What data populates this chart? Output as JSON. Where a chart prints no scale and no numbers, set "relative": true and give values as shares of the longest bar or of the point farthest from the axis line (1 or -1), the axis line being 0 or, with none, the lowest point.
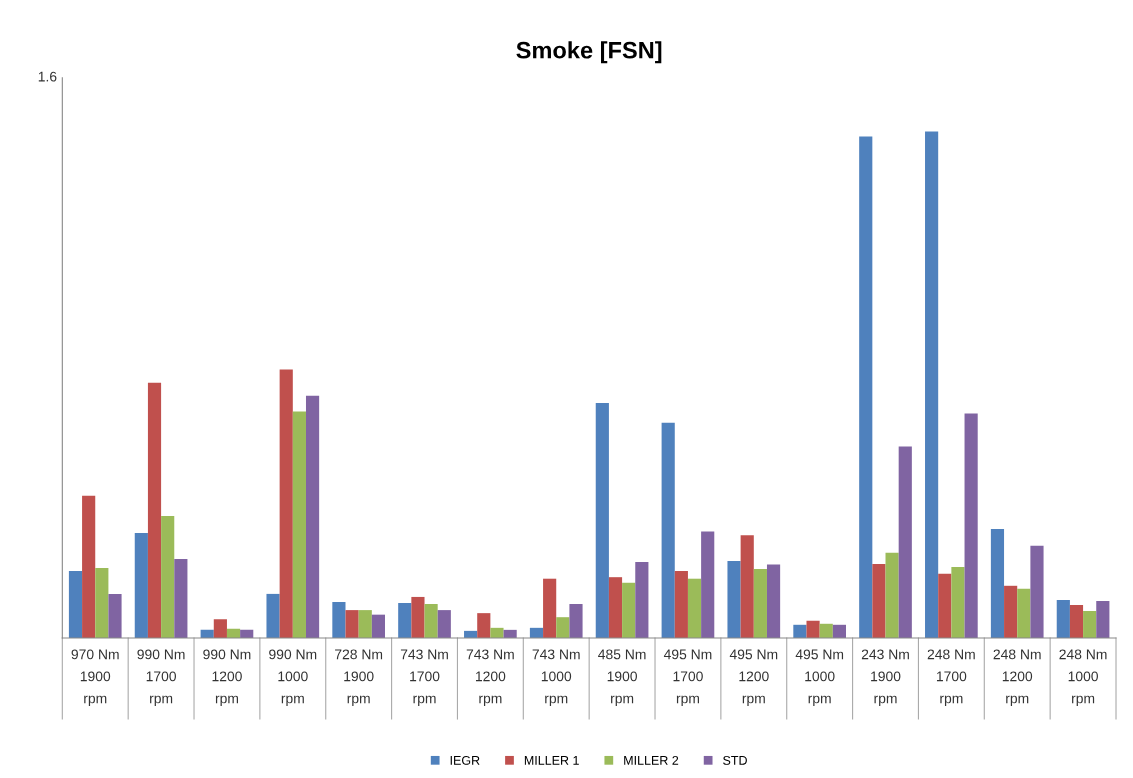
{
  "chart_data": {
    "type": "bar",
    "title": "Smoke [FSN]",
    "relative": true,
    "legend": "bottom",
    "annotations": [
      "1.6"
    ],
    "categories": [
      "970 Nm\n1900\nrpm",
      "990 Nm\n1700\nrpm",
      "990 Nm\n1200\nrpm",
      "990 Nm\n1000\nrpm",
      "728 Nm\n1900\nrpm",
      "743 Nm\n1700\nrpm",
      "743 Nm\n1200\nrpm",
      "743 Nm\n1000\nrpm",
      "485 Nm\n1900\nrpm",
      "495 Nm\n1700\nrpm",
      "495 Nm\n1200\nrpm",
      "495 Nm\n1000\nrpm",
      "243 Nm\n1900\nrpm",
      "248 Nm\n1700\nrpm",
      "248 Nm\n1200\nrpm",
      "248 Nm\n1000\nrpm"
    ],
    "series": [
      {
        "name": "IEGR",
        "color": "#4f81bd",
        "values": [
          0.132,
          0.207,
          0.016,
          0.087,
          0.071,
          0.069,
          0.014,
          0.02,
          0.464,
          0.425,
          0.152,
          0.026,
          0.99,
          1.0,
          0.215,
          0.075
        ]
      },
      {
        "name": "MILLER 1",
        "color": "#c0504d",
        "values": [
          0.281,
          0.504,
          0.037,
          0.53,
          0.055,
          0.081,
          0.049,
          0.117,
          0.12,
          0.132,
          0.203,
          0.034,
          0.146,
          0.127,
          0.103,
          0.065
        ]
      },
      {
        "name": "MILLER 2",
        "color": "#9bbb59",
        "values": [
          0.138,
          0.241,
          0.018,
          0.447,
          0.055,
          0.067,
          0.02,
          0.041,
          0.109,
          0.117,
          0.136,
          0.028,
          0.168,
          0.14,
          0.097,
          0.053
        ]
      },
      {
        "name": "STD",
        "color": "#8064a2",
        "values": [
          0.087,
          0.156,
          0.016,
          0.478,
          0.046,
          0.055,
          0.016,
          0.067,
          0.15,
          0.21,
          0.145,
          0.026,
          0.378,
          0.443,
          0.182,
          0.073
        ]
      }
    ]
  }
}
